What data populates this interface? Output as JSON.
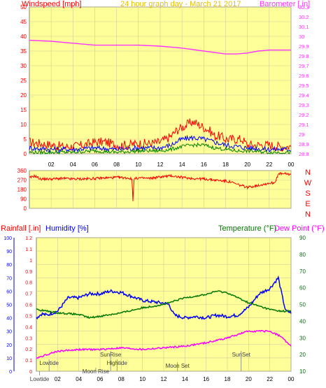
{
  "header": {
    "left": "Windspeed [mph]",
    "center": "24 hour graph day - March 21 2017",
    "right": "Barometer [.in]"
  },
  "lower_header": {
    "rain": "Rainfall [.in]",
    "humidity": "Humidity [%]",
    "temperature": "Temperature (°F)",
    "dewpoint": "Dew Point (°F)"
  },
  "colors": {
    "background": "#ffffff",
    "plot_bg": "#ffff99",
    "grid": "#d4c99a",
    "wind_gust": "#ff0000",
    "wind_avg": "#0000ff",
    "wind_low": "#008000",
    "barometer": "#ff33ff",
    "direction": "#ff0000",
    "humidity": "#0000ff",
    "temperature": "#007700",
    "dewpoint": "#ff00ff",
    "rain_axis": "#0000cc",
    "events": "#808080"
  },
  "chart_data": [
    {
      "type": "line",
      "title": "24 hour graph day - March 21 2017",
      "x_ticks": [
        "02",
        "04",
        "06",
        "08",
        "10",
        "12",
        "14",
        "16",
        "18",
        "20",
        "22",
        "00"
      ],
      "x_hours": [
        2,
        4,
        6,
        8,
        10,
        12,
        14,
        16,
        18,
        20,
        22,
        24
      ],
      "left_axis": {
        "label": "Windspeed [mph]",
        "range": [
          0,
          50
        ],
        "ticks": [
          0,
          5,
          10,
          15,
          20,
          25,
          30,
          35,
          40,
          45,
          50
        ]
      },
      "right_axis": {
        "label": "Barometer [.in]",
        "range": [
          28.8,
          30.3
        ],
        "ticks": [
          "28.8",
          "28.9",
          "29",
          "29.1",
          "29.2",
          "29.3",
          "29.4",
          "29.5",
          "29.6",
          "29.7",
          "29.8",
          "29.9",
          "30",
          "30.1",
          "30.2",
          "30.3"
        ]
      },
      "series": [
        {
          "name": "Windspeed [mph]",
          "kind": "gust",
          "x": [
            0,
            1,
            2,
            3,
            4,
            5,
            6,
            7,
            8,
            9,
            10,
            11,
            12,
            12.5,
            13,
            13.5,
            14,
            14.5,
            15,
            15.5,
            16,
            16.5,
            17,
            17.5,
            18,
            18.5,
            19,
            19.5,
            20,
            21,
            22,
            23,
            24
          ],
          "y": [
            4,
            3.5,
            3,
            2.5,
            2.5,
            3,
            4,
            4,
            3,
            3,
            3.5,
            3.5,
            4,
            5,
            6,
            8,
            9,
            10,
            11,
            10,
            9,
            8,
            6,
            6,
            5,
            5,
            5,
            5,
            3,
            3,
            3,
            2.5,
            2.5
          ]
        },
        {
          "kind": "average",
          "x": [
            0,
            2,
            4,
            6,
            8,
            10,
            12,
            13,
            14,
            15,
            16,
            17,
            18,
            19,
            20,
            22,
            24
          ],
          "y": [
            2,
            1.5,
            1.5,
            2,
            1.5,
            2,
            2,
            3,
            5,
            5.5,
            5,
            4,
            3,
            2.5,
            2,
            1.5,
            1.5
          ]
        },
        {
          "kind": "low",
          "x": [
            0,
            2,
            4,
            6,
            8,
            10,
            12,
            13,
            14,
            15,
            16,
            17,
            18,
            19,
            20,
            22,
            24
          ],
          "y": [
            0.5,
            0.5,
            0.5,
            1,
            0.5,
            1,
            1,
            1.5,
            2.5,
            3,
            3,
            2,
            1.5,
            1,
            1,
            0.5,
            0.5
          ]
        },
        {
          "name": "Barometer [.in]",
          "axis": "right",
          "x": [
            0,
            2,
            4,
            6,
            8,
            10,
            12,
            14,
            16,
            18,
            19,
            20,
            21,
            22,
            23,
            24
          ],
          "y": [
            29.96,
            29.95,
            29.93,
            29.91,
            29.91,
            29.91,
            29.9,
            29.88,
            29.85,
            29.82,
            29.82,
            29.83,
            29.85,
            29.86,
            29.86,
            29.86
          ]
        }
      ]
    },
    {
      "type": "line",
      "y_axis": {
        "range": [
          0,
          360
        ],
        "ticks": [
          0,
          90,
          180,
          270,
          360
        ]
      },
      "compass": [
        "N",
        "W",
        "S",
        "E",
        "N"
      ],
      "series": [
        {
          "kind": "direction",
          "x": [
            0,
            0.5,
            1,
            2,
            3,
            4,
            5,
            6,
            7,
            8,
            9,
            9.4,
            9.5,
            9.6,
            10,
            11,
            12,
            13,
            14,
            15,
            16,
            17,
            18,
            18.5,
            19,
            19.5,
            20,
            21,
            22,
            22.5,
            22.8,
            23,
            24
          ],
          "y": [
            290,
            310,
            280,
            280,
            285,
            280,
            280,
            285,
            290,
            295,
            290,
            280,
            80,
            280,
            290,
            285,
            300,
            310,
            295,
            285,
            280,
            270,
            260,
            250,
            230,
            215,
            200,
            220,
            240,
            245,
            320,
            330,
            325
          ]
        }
      ]
    },
    {
      "type": "line",
      "rain_axis": {
        "label": "Rainfall [.in]",
        "range": [
          0,
          1.2
        ],
        "ticks": [
          "0",
          "0.1",
          "0.2",
          "0.3",
          "0.4",
          "0.5",
          "0.6",
          "0.7",
          "0.8",
          "0.9",
          "1",
          "1.1",
          "1.2"
        ]
      },
      "humidity_axis": {
        "label": "Humidity [%]",
        "range": [
          0,
          100
        ],
        "ticks": [
          0,
          10,
          20,
          30,
          40,
          50,
          60,
          70,
          80,
          90,
          100
        ]
      },
      "temp_axis": {
        "label": "Temperature (°F)",
        "range": [
          10,
          90
        ],
        "ticks": [
          10,
          20,
          30,
          40,
          50,
          60,
          70,
          80,
          90
        ]
      },
      "series": [
        {
          "name": "Humidity [%]",
          "axis": "humidity",
          "x": [
            0,
            0.5,
            1,
            2,
            2.5,
            3,
            4,
            5,
            6,
            7,
            8,
            9,
            10,
            11,
            12,
            12.5,
            13,
            14,
            15,
            16,
            17,
            18,
            19,
            20,
            21,
            22,
            22.5,
            22.8,
            23.2,
            23.5,
            24
          ],
          "y": [
            40,
            43,
            42,
            45,
            50,
            55,
            55,
            58,
            58,
            60,
            59,
            56,
            53,
            52,
            51,
            50,
            42,
            40,
            41,
            40,
            42,
            41,
            42,
            48,
            58,
            62,
            67,
            70,
            55,
            45,
            44
          ]
        },
        {
          "name": "Temperature (°F)",
          "axis": "temperature",
          "x": [
            0,
            2,
            4,
            5,
            6,
            8,
            10,
            12,
            13,
            14,
            16,
            17,
            18,
            19,
            20,
            21,
            22,
            23,
            24
          ],
          "y": [
            47,
            45,
            44,
            42,
            43,
            45,
            48,
            50,
            52,
            54,
            56,
            58,
            57,
            54,
            51,
            49,
            47,
            46,
            46
          ]
        },
        {
          "name": "Dew Point (°F)",
          "axis": "temperature",
          "x": [
            0,
            1,
            2,
            4,
            6,
            8,
            10,
            12,
            14,
            16,
            18,
            19,
            20,
            21,
            22,
            23,
            24
          ],
          "y": [
            18,
            20,
            22,
            23,
            23,
            24,
            23,
            24,
            25,
            27,
            30,
            32,
            34,
            34,
            34,
            31,
            25
          ]
        }
      ],
      "events": [
        {
          "label": "Lowtide",
          "hour": 1.2
        },
        {
          "label": "Moon Rise",
          "hour": 5.6
        },
        {
          "label": "SunRise",
          "hour": 7.0
        },
        {
          "label": "Hightide",
          "hour": 7.6
        },
        {
          "label": "Moon Set",
          "hour": 13.3
        },
        {
          "label": "SunSet",
          "hour": 19.3
        },
        {
          "label": "Lowtide",
          "hour": 0.3
        }
      ]
    }
  ]
}
